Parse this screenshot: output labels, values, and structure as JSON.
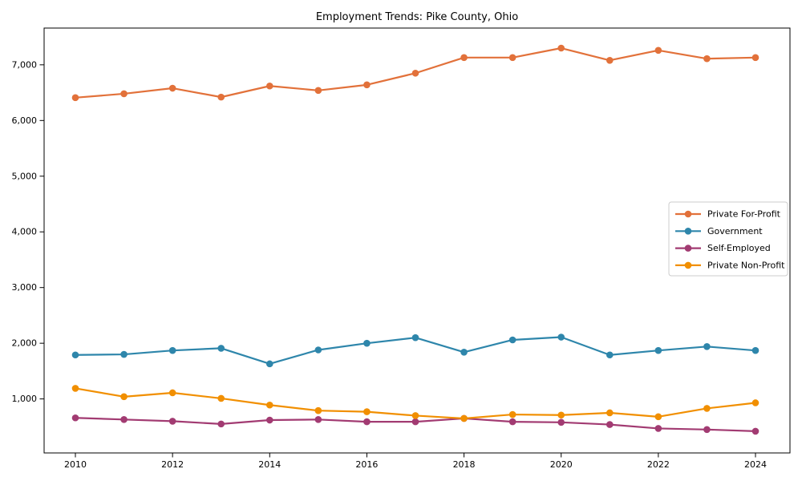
{
  "chart_data": {
    "type": "line",
    "title": "Employment Trends: Pike County, Ohio",
    "xlabel": "",
    "ylabel": "",
    "x": [
      2010,
      2011,
      2012,
      2013,
      2014,
      2015,
      2016,
      2017,
      2018,
      2019,
      2020,
      2021,
      2022,
      2023,
      2024
    ],
    "x_tick_labels": [
      "2010",
      "2012",
      "2014",
      "2016",
      "2018",
      "2020",
      "2022",
      "2024"
    ],
    "x_tick_years": [
      2010,
      2012,
      2014,
      2016,
      2018,
      2020,
      2022,
      2024
    ],
    "y_ticks": [
      1000,
      2000,
      3000,
      4000,
      5000,
      6000,
      7000
    ],
    "y_tick_labels": [
      "1,000",
      "2,000",
      "3,000",
      "4,000",
      "5,000",
      "6,000",
      "7,000"
    ],
    "ylim": [
      30,
      7660
    ],
    "grid": false,
    "marker": "circle",
    "legend_position": "center right",
    "series": [
      {
        "name": "Private For-Profit",
        "color": "#E2713A",
        "values": [
          6410,
          6480,
          6580,
          6420,
          6620,
          6540,
          6640,
          6850,
          7130,
          7130,
          7300,
          7080,
          7260,
          7110,
          7130
        ]
      },
      {
        "name": "Government",
        "color": "#2E86AB",
        "values": [
          1790,
          1800,
          1870,
          1910,
          1630,
          1880,
          2000,
          2100,
          1840,
          2060,
          2110,
          1790,
          1870,
          1940,
          1870
        ]
      },
      {
        "name": "Self-Employed",
        "color": "#A23B72",
        "values": [
          660,
          630,
          600,
          550,
          620,
          630,
          590,
          590,
          650,
          590,
          580,
          540,
          470,
          450,
          420
        ]
      },
      {
        "name": "Private Non-Profit",
        "color": "#F18F01",
        "values": [
          1190,
          1040,
          1110,
          1010,
          890,
          790,
          770,
          700,
          650,
          720,
          710,
          750,
          680,
          830,
          930
        ]
      }
    ]
  }
}
